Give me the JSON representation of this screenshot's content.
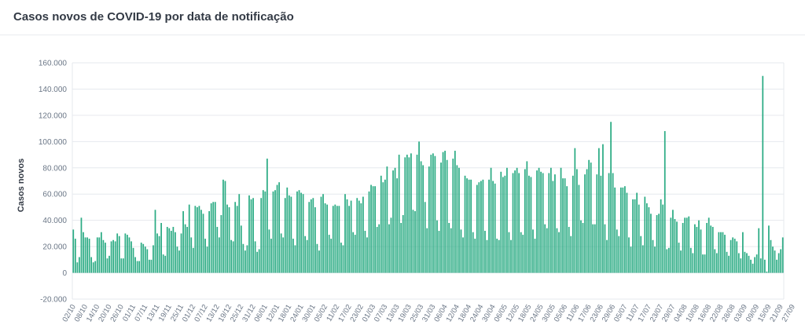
{
  "header": {
    "title": "Casos novos de COVID-19 por data de notificação"
  },
  "colors": {
    "bar": "#2aab83",
    "grid": "#e6e9ee",
    "axis_text": "#6b7787",
    "title": "#333a45"
  },
  "chart_data": {
    "type": "bar",
    "ylabel": "Casos novos",
    "ylim": [
      -20000,
      160000
    ],
    "yticks": [
      -20000,
      0,
      20000,
      40000,
      60000,
      80000,
      100000,
      120000,
      140000,
      160000
    ],
    "ytick_labels": [
      "-20.000",
      "0",
      "20.000",
      "40.000",
      "60.000",
      "80.000",
      "100.000",
      "120.000",
      "140.000",
      "160.000"
    ],
    "xtick_labels": [
      "02/10",
      "08/10",
      "14/10",
      "20/10",
      "26/10",
      "01/11",
      "07/11",
      "13/11",
      "19/11",
      "25/11",
      "01/12",
      "07/12",
      "13/12",
      "19/12",
      "25/12",
      "31/12",
      "06/01",
      "12/01",
      "18/01",
      "24/01",
      "30/01",
      "05/02",
      "11/02",
      "17/02",
      "23/02",
      "01/03",
      "07/03",
      "13/03",
      "19/03",
      "25/03",
      "31/03",
      "06/04",
      "12/04",
      "18/04",
      "24/04",
      "30/04",
      "06/05",
      "12/05",
      "18/05",
      "24/05",
      "30/05",
      "05/06",
      "11/06",
      "17/06",
      "23/06",
      "29/06",
      "05/07",
      "11/07",
      "17/07",
      "23/07",
      "29/07",
      "04/08",
      "10/08",
      "16/08",
      "22/08",
      "28/08",
      "03/09",
      "09/09",
      "15/09",
      "21/09",
      "27/09"
    ],
    "values": [
      33000,
      26000,
      8000,
      12000,
      42000,
      31000,
      27000,
      27000,
      26000,
      12000,
      8000,
      9000,
      27000,
      27000,
      31000,
      25000,
      23000,
      11000,
      13000,
      24000,
      25000,
      24000,
      30000,
      28000,
      11000,
      11000,
      30000,
      29000,
      27000,
      24000,
      19000,
      12000,
      9000,
      9000,
      23000,
      22000,
      20000,
      18000,
      10000,
      10000,
      21000,
      48000,
      30000,
      28000,
      38000,
      14000,
      13000,
      35000,
      34000,
      32000,
      35000,
      31000,
      20000,
      17000,
      30000,
      47000,
      37000,
      35000,
      52000,
      27000,
      19000,
      51000,
      50000,
      51000,
      48000,
      45000,
      26000,
      20000,
      47000,
      53000,
      54000,
      54000,
      35000,
      27000,
      44000,
      71000,
      70000,
      52000,
      50000,
      25000,
      24000,
      54000,
      51000,
      60000,
      36000,
      22000,
      17000,
      21000,
      59000,
      56000,
      57000,
      24000,
      16000,
      18000,
      57000,
      63000,
      62000,
      87000,
      33000,
      26000,
      62000,
      63000,
      67000,
      69000,
      30000,
      27000,
      57000,
      65000,
      59000,
      58000,
      26000,
      21000,
      62000,
      63000,
      61000,
      60000,
      28000,
      25000,
      54000,
      56000,
      57000,
      50000,
      22000,
      17000,
      58000,
      60000,
      53000,
      52000,
      29000,
      26000,
      51000,
      52000,
      51000,
      51000,
      23000,
      21000,
      60000,
      56000,
      51000,
      55000,
      31000,
      29000,
      57000,
      55000,
      53000,
      58000,
      32000,
      27000,
      62000,
      67000,
      66000,
      66000,
      35000,
      37000,
      74000,
      69000,
      71000,
      81000,
      37000,
      42000,
      78000,
      80000,
      72000,
      90000,
      38000,
      44000,
      88000,
      90000,
      88000,
      91000,
      48000,
      47000,
      90000,
      100000,
      85000,
      82000,
      54000,
      34000,
      81000,
      90000,
      91000,
      89000,
      40000,
      32000,
      84000,
      92000,
      93000,
      86000,
      38000,
      34000,
      87000,
      93000,
      82000,
      80000,
      33000,
      27000,
      74000,
      72000,
      71000,
      71000,
      31000,
      26000,
      67000,
      69000,
      70000,
      71000,
      32000,
      25000,
      71000,
      80000,
      70000,
      68000,
      26000,
      25000,
      77000,
      73000,
      74000,
      80000,
      31000,
      25000,
      76000,
      78000,
      80000,
      76000,
      31000,
      29000,
      79000,
      85000,
      74000,
      73000,
      33000,
      26000,
      78000,
      80000,
      77000,
      76000,
      37000,
      34000,
      76000,
      80000,
      70000,
      75000,
      34000,
      31000,
      80000,
      72000,
      72000,
      66000,
      35000,
      28000,
      74000,
      95000,
      79000,
      67000,
      40000,
      38000,
      75000,
      79000,
      86000,
      84000,
      37000,
      37000,
      75000,
      95000,
      74000,
      98000,
      37000,
      25000,
      76000,
      115000,
      76000,
      65000,
      33000,
      28000,
      65000,
      65000,
      66000,
      61000,
      27000,
      20000,
      56000,
      56000,
      61000,
      52000,
      28000,
      21000,
      58000,
      53000,
      50000,
      45000,
      25000,
      20000,
      44000,
      45000,
      56000,
      52000,
      108000,
      18000,
      19000,
      42000,
      48000,
      41000,
      39000,
      23000,
      17000,
      38000,
      42000,
      42000,
      43000,
      19000,
      15000,
      37000,
      35000,
      40000,
      33000,
      14000,
      14000,
      38000,
      42000,
      36000,
      35000,
      18000,
      15000,
      31000,
      31000,
      31000,
      29000,
      16000,
      13000,
      25000,
      27000,
      26000,
      24000,
      15000,
      11000,
      31000,
      16000,
      15000,
      13000,
      10000,
      7000,
      12000,
      14000,
      34000,
      11000,
      150000,
      10000,
      1000,
      36000,
      25000,
      20000,
      17000,
      10000,
      15000,
      18000,
      27000
    ]
  }
}
